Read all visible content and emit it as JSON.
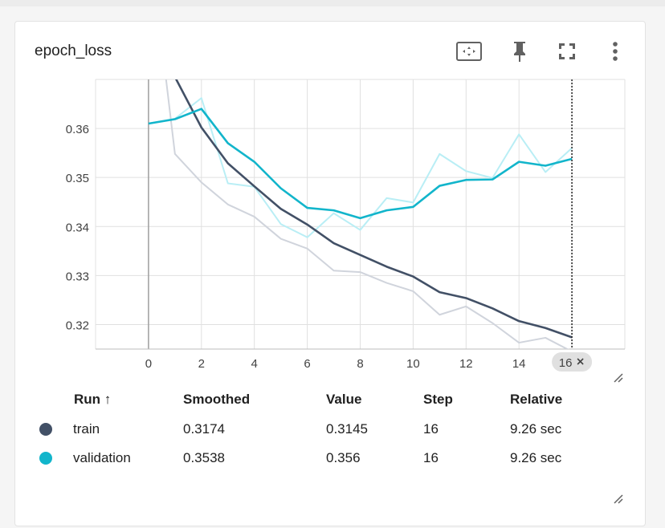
{
  "card": {
    "title": "epoch_loss"
  },
  "icons": {
    "fit_domain": "fit-to-data-icon",
    "pin": "pin-icon",
    "fullscreen": "fullscreen-icon",
    "more": "more-vert-icon"
  },
  "chart_data": {
    "type": "line",
    "x_axis": {
      "ticks": [
        0,
        2,
        4,
        6,
        8,
        10,
        12,
        14,
        16
      ],
      "range": [
        -2,
        18
      ]
    },
    "y_axis": {
      "ticks": [
        0.32,
        0.33,
        0.34,
        0.35,
        0.36
      ],
      "tick_labels": [
        "0.32",
        "0.33",
        "0.34",
        "0.35",
        "0.36"
      ],
      "range": [
        0.315,
        0.37
      ]
    },
    "grid": true,
    "hover_step": 16,
    "hover_chip_label": "16",
    "series": [
      {
        "name": "train",
        "color": "#425066",
        "raw_color": "#d0d4dc",
        "x": [
          0,
          1,
          2,
          3,
          4,
          5,
          6,
          7,
          8,
          9,
          10,
          11,
          12,
          13,
          14,
          15,
          16
        ],
        "raw": [
          0.4,
          0.3548,
          0.349,
          0.3445,
          0.342,
          0.3375,
          0.3355,
          0.331,
          0.3307,
          0.3285,
          0.3268,
          0.322,
          0.3237,
          0.3203,
          0.3163,
          0.3173,
          0.3145
        ],
        "smoothed": [
          0.4,
          0.3705,
          0.3602,
          0.3529,
          0.3482,
          0.3436,
          0.3404,
          0.3366,
          0.3342,
          0.3318,
          0.3298,
          0.3266,
          0.3254,
          0.3233,
          0.3207,
          0.3193,
          0.3174
        ]
      },
      {
        "name": "validation",
        "color": "#12b5cb",
        "raw_color": "#b9eef5",
        "x": [
          0,
          1,
          2,
          3,
          4,
          5,
          6,
          7,
          8,
          9,
          10,
          11,
          12,
          13,
          14,
          15,
          16
        ],
        "raw": [
          0.361,
          0.362,
          0.3662,
          0.3488,
          0.3481,
          0.3405,
          0.3378,
          0.3427,
          0.3393,
          0.3458,
          0.3449,
          0.3548,
          0.3513,
          0.3499,
          0.3588,
          0.3511,
          0.356
        ],
        "smoothed": [
          0.361,
          0.3619,
          0.364,
          0.357,
          0.3532,
          0.3478,
          0.3438,
          0.3433,
          0.3417,
          0.3433,
          0.344,
          0.3483,
          0.3495,
          0.3496,
          0.3532,
          0.3524,
          0.3538
        ]
      }
    ]
  },
  "table": {
    "headers": {
      "run": "Run ↑",
      "smoothed": "Smoothed",
      "value": "Value",
      "step": "Step",
      "relative": "Relative"
    },
    "rows": [
      {
        "run": "train",
        "color": "#425066",
        "smoothed": "0.3174",
        "value": "0.3145",
        "step": "16",
        "relative": "9.26 sec"
      },
      {
        "run": "validation",
        "color": "#12b5cb",
        "smoothed": "0.3538",
        "value": "0.356",
        "step": "16",
        "relative": "9.26 sec"
      }
    ]
  }
}
